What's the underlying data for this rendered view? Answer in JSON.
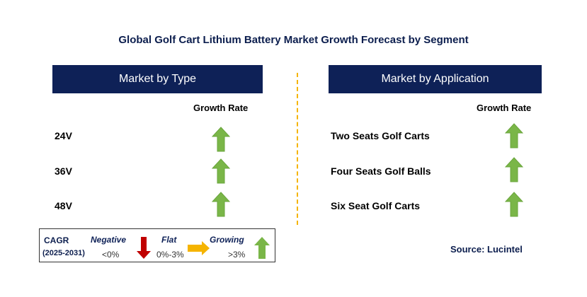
{
  "title": "Global Golf Cart Lithium Battery Market Growth Forecast by Segment",
  "left_panel": {
    "header": "Market by Type",
    "growth_rate_label": "Growth Rate",
    "rows": [
      {
        "label": "24V",
        "trend": "growing"
      },
      {
        "label": "36V",
        "trend": "growing"
      },
      {
        "label": "48V",
        "trend": "growing"
      }
    ]
  },
  "right_panel": {
    "header": "Market by Application",
    "growth_rate_label": "Growth Rate",
    "rows": [
      {
        "label": "Two Seats Golf Carts",
        "trend": "growing"
      },
      {
        "label": "Four Seats Golf Balls",
        "trend": "growing"
      },
      {
        "label": "Six Seat Golf Carts",
        "trend": "growing"
      }
    ]
  },
  "legend": {
    "cagr": "CAGR",
    "period": "(2025-2031)",
    "negative": "Negative",
    "negative_range": "<0%",
    "flat": "Flat",
    "flat_range": "0%-3%",
    "growing": "Growing",
    "growing_range": ">3%"
  },
  "source": "Source: Lucintel",
  "colors": {
    "header_bg": "#0e2157",
    "growing": "#7ab648",
    "negative": "#c00000",
    "flat": "#f5b400",
    "divider": "#f5b400"
  }
}
